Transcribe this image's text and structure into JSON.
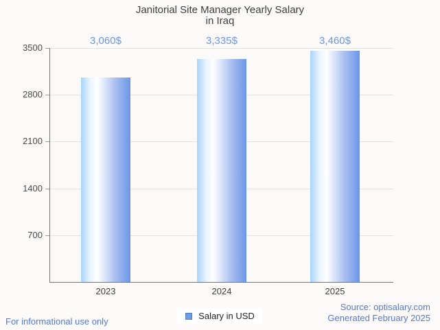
{
  "title": {
    "line1": "Janitorial Site Manager Yearly Salary",
    "line2": "in Iraq"
  },
  "chart_data": {
    "type": "bar",
    "categories": [
      "2023",
      "2024",
      "2025"
    ],
    "values": [
      3060,
      3335,
      3460
    ],
    "value_labels": [
      "3,060$",
      "3,335$",
      "3,460$"
    ],
    "series": [
      {
        "name": "Salary in USD",
        "values": [
          3060,
          3335,
          3460
        ]
      }
    ],
    "title": "Janitorial Site Manager Yearly Salary in Iraq",
    "xlabel": "",
    "ylabel": "",
    "ylim": [
      0,
      3500
    ],
    "yticks": [
      3500,
      2800,
      2100,
      1400,
      700
    ],
    "ytick_labels": [
      "3500",
      "2800",
      "2100",
      "1400",
      "700"
    ],
    "grid": true,
    "legend_position": "bottom",
    "bar_gradient": [
      "#a9d3fa",
      "#ffffff",
      "#6b96e8"
    ]
  },
  "legend": {
    "label": "Salary in USD",
    "swatch_color": "#6d9de8"
  },
  "footer": {
    "left": "For informational use only",
    "source_line1": "Source: optisalary.com",
    "source_line2": "Generated February 2025"
  },
  "colors": {
    "background": "#fbfaf8",
    "title_text": "#3d3d3d",
    "value_label": "#6d95e1",
    "footer_text": "#5579d2",
    "axis": "#757575",
    "gridline": "#e4e2de"
  }
}
